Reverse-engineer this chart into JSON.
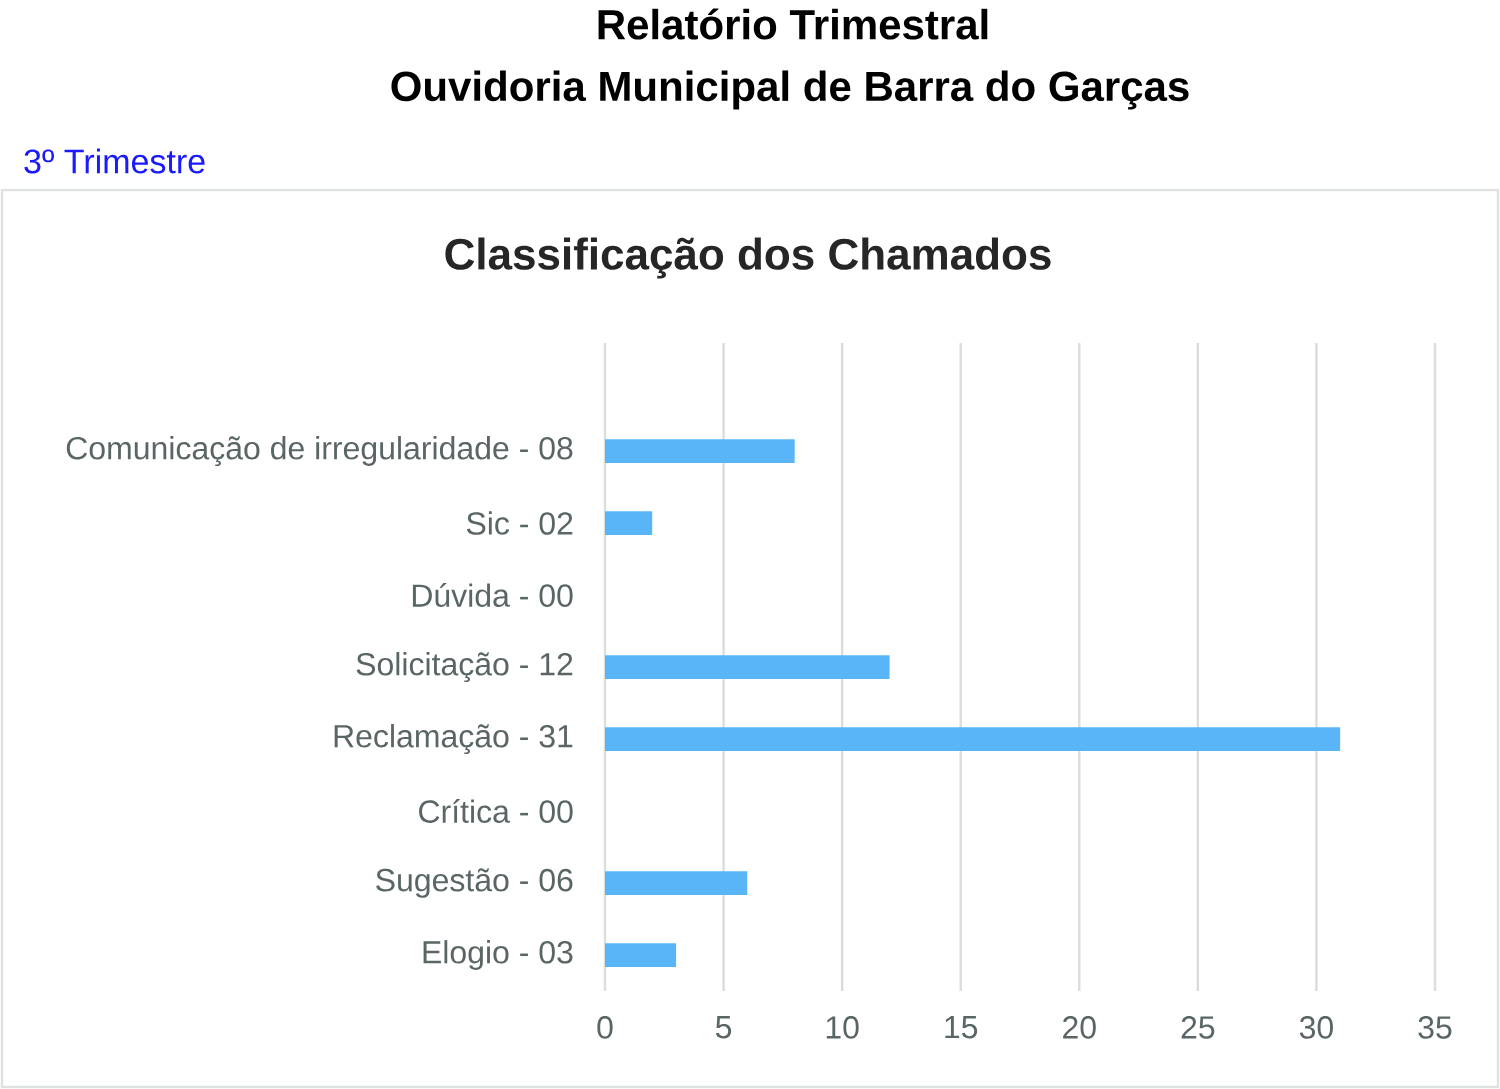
{
  "chart_data": {
    "type": "bar",
    "orientation": "horizontal",
    "title": "Classificação dos Chamados",
    "annotations": [
      "Relatório Trimestral",
      "Ouvidoria Municipal de Barra do Garças",
      "3º Trimestre"
    ],
    "categories": [
      "Comunicação de irregularidade - 08",
      "Sic - 02",
      "Dúvida - 00",
      "Solicitação - 12",
      "Reclamação - 31",
      "Crítica - 00",
      "Sugestão - 06",
      "Elogio - 03"
    ],
    "values": [
      8,
      2,
      0,
      12,
      31,
      0,
      6,
      3
    ],
    "color": "#5ab4f8",
    "xlim": [
      0,
      35
    ],
    "xticks": [
      0,
      5,
      10,
      15,
      20,
      25,
      30,
      35
    ],
    "grid": "x"
  }
}
